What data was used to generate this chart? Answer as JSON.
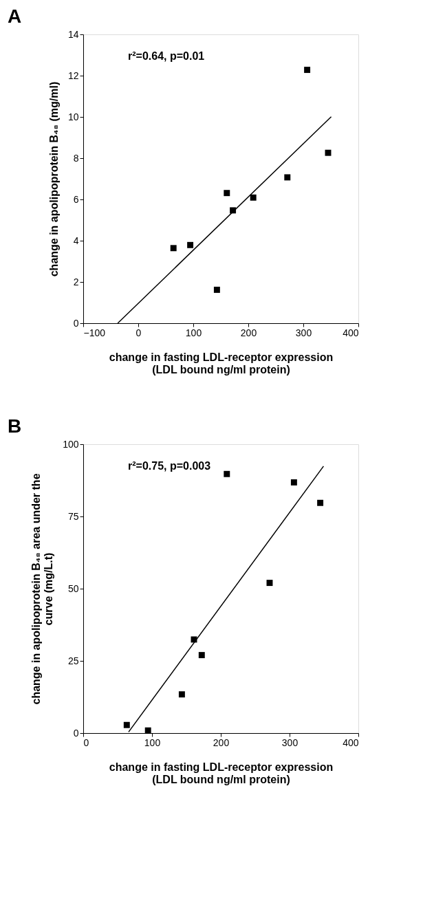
{
  "chart_data": [
    {
      "type": "scatter",
      "title": "A",
      "xlabel": "change in fasting LDL-receptor expression\n(LDL bound ng/ml protein)",
      "ylabel": "change in apolipoprotein B₄₈ (mg/ml)",
      "annotations": [
        "r²=0.64, p=0.01"
      ],
      "xlim": [
        -100,
        400
      ],
      "xticks": [
        -100,
        0,
        100,
        200,
        300,
        400
      ],
      "ylim": [
        0,
        14
      ],
      "yticks": [
        0,
        2,
        4,
        6,
        8,
        10,
        12,
        14
      ],
      "grid": false,
      "legend": false,
      "marker": "square",
      "series": [
        {
          "color": "#000000",
          "x": [
            64,
            94.5,
            143,
            161,
            172,
            209,
            271,
            307,
            345
          ],
          "values": [
            3.64,
            3.79,
            1.62,
            6.31,
            5.47,
            6.09,
            7.07,
            12.28,
            8.26
          ]
        },
        {
          "type": "line",
          "color": "#000000",
          "marker": "none",
          "line_style": "solid",
          "x": [
            -37.3,
            350.7
          ],
          "values": [
            0,
            10.01
          ]
        }
      ]
    },
    {
      "type": "scatter",
      "title": "B",
      "xlabel": "change in fasting LDL-receptor expression\n(LDL bound ng/ml protein)",
      "ylabel": "change in apolipoprotein B₄₈ area under the\ncurve (mg/L.t)",
      "annotations": [
        "r²=0.75, p=0.003"
      ],
      "xlim": [
        0,
        400
      ],
      "xticks": [
        0,
        100,
        200,
        300,
        400
      ],
      "ylim": [
        0,
        100
      ],
      "yticks": [
        0,
        25,
        50,
        75,
        100
      ],
      "grid": false,
      "legend": false,
      "marker": "square",
      "series": [
        {
          "color": "#000000",
          "x": [
            63.3,
            94.2,
            143.4,
            161,
            172.3,
            208.8,
            271,
            306.4,
            344.6
          ],
          "values": [
            2.8,
            0.9,
            13.4,
            32.4,
            27.0,
            89.7,
            52.0,
            86.8,
            79.7
          ]
        },
        {
          "type": "line",
          "color": "#000000",
          "marker": "none",
          "line_style": "solid",
          "x": [
            66,
            349.4
          ],
          "values": [
            0.4,
            92.4
          ]
        }
      ]
    }
  ]
}
